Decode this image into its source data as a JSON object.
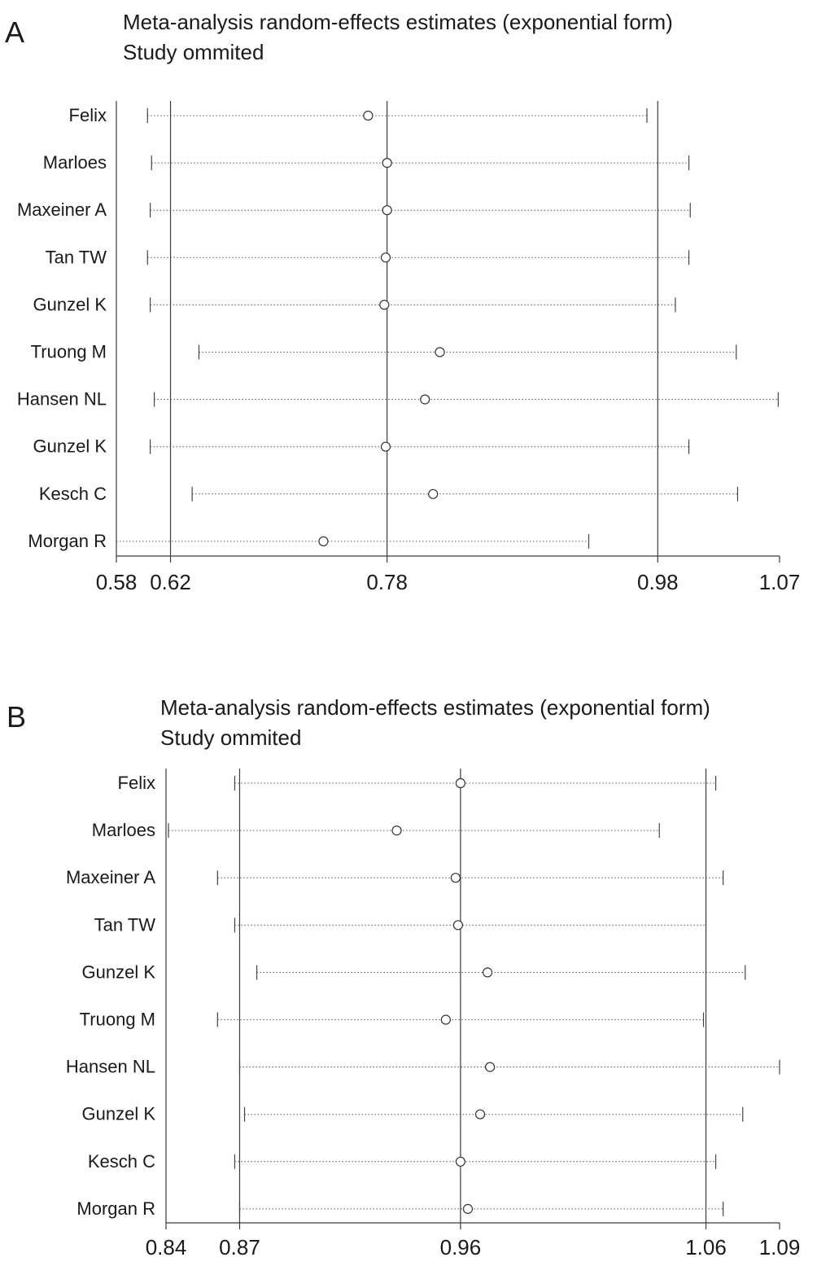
{
  "chart_data": [
    {
      "panel_label": "A",
      "type": "scatter",
      "subtype": "forest-plot",
      "title": "Meta-analysis random-effects estimates (exponential form)",
      "subtitle": "Study ommited",
      "xlim": [
        0.58,
        1.07
      ],
      "x_ticks": [
        0.58,
        0.62,
        0.78,
        0.98,
        1.07
      ],
      "x_tick_labels": [
        "0.58",
        "0.62",
        "0.78",
        "0.98",
        "1.07"
      ],
      "reference_lines": [
        0.62,
        0.78,
        0.98
      ],
      "studies": [
        "Felix",
        "Marloes",
        "Maxeiner A",
        "Tan TW",
        "Gunzel K",
        "Truong M",
        "Hansen NL",
        "Gunzel K",
        "Kesch C",
        "Morgan R"
      ],
      "estimate": [
        0.766,
        0.78,
        0.78,
        0.779,
        0.778,
        0.819,
        0.808,
        0.779,
        0.814,
        0.733
      ],
      "lower": [
        0.603,
        0.606,
        0.605,
        0.603,
        0.605,
        0.641,
        0.608,
        0.605,
        0.636,
        0.58
      ],
      "upper": [
        0.972,
        1.003,
        1.004,
        1.003,
        0.993,
        1.038,
        1.069,
        1.003,
        1.039,
        0.929
      ]
    },
    {
      "panel_label": "B",
      "type": "scatter",
      "subtype": "forest-plot",
      "title": "Meta-analysis random-effects estimates (exponential form)",
      "subtitle": "Study ommited",
      "xlim": [
        0.84,
        1.09
      ],
      "x_ticks": [
        0.84,
        0.87,
        0.96,
        1.06,
        1.09
      ],
      "x_tick_labels": [
        "0.84",
        "0.87",
        "0.96",
        "1.06",
        "1.09"
      ],
      "reference_lines": [
        0.87,
        0.96,
        1.06
      ],
      "studies": [
        "Felix",
        "Marloes",
        "Maxeiner A",
        "Tan TW",
        "Gunzel K",
        "Truong M",
        "Hansen NL",
        "Gunzel K",
        "Kesch C",
        "Morgan R"
      ],
      "estimate": [
        0.96,
        0.934,
        0.958,
        0.959,
        0.971,
        0.954,
        0.972,
        0.968,
        0.96,
        0.963
      ],
      "lower": [
        0.868,
        0.841,
        0.861,
        0.868,
        0.877,
        0.861,
        0.87,
        0.872,
        0.868,
        0.87
      ],
      "upper": [
        1.064,
        1.041,
        1.067,
        1.06,
        1.076,
        1.059,
        1.09,
        1.075,
        1.064,
        1.067
      ]
    }
  ]
}
